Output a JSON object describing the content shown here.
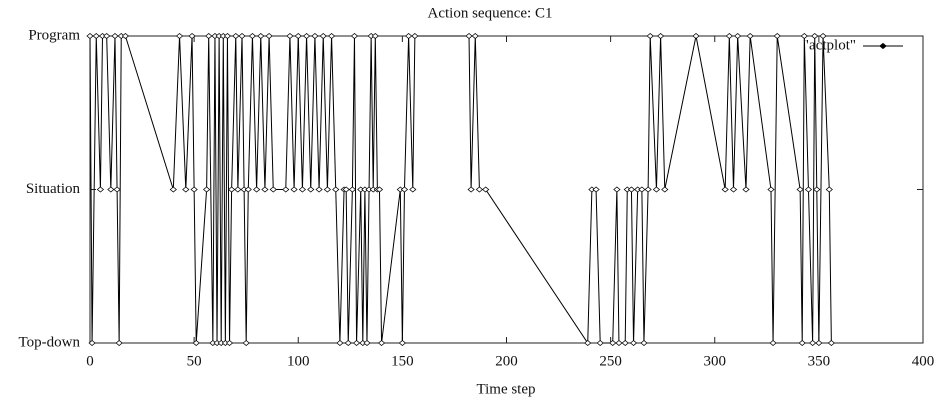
{
  "chart_data": {
    "type": "line",
    "title": "Action sequence: C1",
    "x_label": "Time step",
    "x": [
      0,
      1,
      3,
      5,
      6,
      8,
      10,
      12,
      13,
      14,
      15,
      17,
      40,
      43,
      46,
      49,
      50,
      51,
      56,
      57,
      59,
      60,
      61,
      62,
      63,
      64,
      65,
      66,
      67,
      68,
      70,
      71,
      73,
      74,
      75,
      76,
      78,
      80,
      82,
      84,
      86,
      88,
      94,
      96,
      98,
      100,
      102,
      104,
      106,
      108,
      110,
      112,
      114,
      116,
      118,
      120,
      122,
      123,
      124,
      126,
      127,
      128,
      130,
      131,
      132,
      133,
      134,
      135,
      136,
      137,
      138,
      139,
      140,
      149,
      150,
      151,
      153,
      155,
      156,
      182,
      183,
      185,
      187,
      190,
      239,
      241,
      243,
      245,
      251,
      253,
      254,
      257,
      258,
      260,
      261,
      263,
      265,
      266,
      268,
      269,
      272,
      274,
      276,
      291,
      305,
      307,
      309,
      311,
      315,
      317,
      327,
      328,
      330,
      341,
      342,
      343,
      345,
      347,
      348,
      349,
      350,
      352,
      355,
      356
    ],
    "series": [
      {
        "name": "\"actplot\"",
        "color": "#000000",
        "values": [
          2,
          0,
          2,
          1,
          2,
          2,
          1,
          2,
          1,
          0,
          2,
          2,
          1,
          2,
          1,
          2,
          1,
          0,
          1,
          2,
          0,
          2,
          0,
          2,
          0,
          2,
          0,
          2,
          0,
          1,
          2,
          1,
          2,
          1,
          0,
          1,
          2,
          1,
          2,
          1,
          2,
          1,
          1,
          2,
          1,
          2,
          1,
          2,
          1,
          2,
          1,
          2,
          1,
          2,
          1,
          0,
          1,
          1,
          0,
          1,
          2,
          0,
          1,
          0,
          1,
          0,
          1,
          2,
          1,
          2,
          1,
          1,
          0,
          1,
          0,
          1,
          2,
          1,
          2,
          2,
          1,
          2,
          1,
          1,
          0,
          1,
          1,
          0,
          0,
          1,
          0,
          0,
          1,
          1,
          0,
          1,
          1,
          0,
          1,
          2,
          1,
          2,
          1,
          2,
          1,
          2,
          1,
          2,
          1,
          2,
          1,
          0,
          2,
          1,
          0,
          2,
          1,
          0,
          2,
          1,
          0,
          2,
          1,
          0
        ]
      }
    ],
    "xlim": [
      0,
      400
    ],
    "xticks": [
      0,
      50,
      100,
      150,
      200,
      250,
      300,
      350,
      400
    ],
    "ylim": [
      0,
      2
    ],
    "yticks": [
      {
        "value": 0,
        "label": "Top-down"
      },
      {
        "value": 1,
        "label": "Situation"
      },
      {
        "value": 2,
        "label": "Program"
      }
    ],
    "legend": "top-right"
  }
}
